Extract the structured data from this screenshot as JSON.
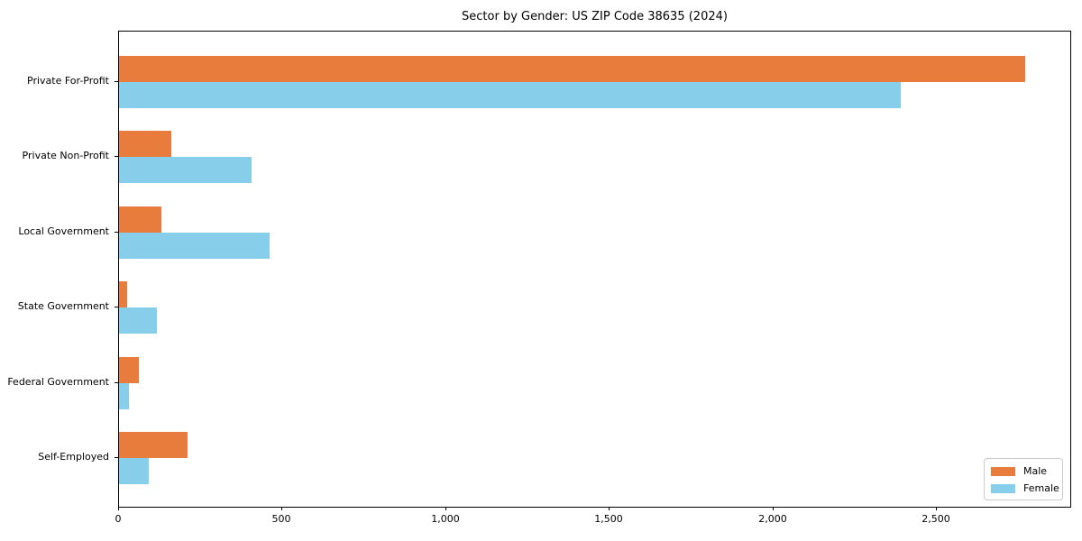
{
  "chart_data": {
    "type": "bar",
    "orientation": "horizontal",
    "title": "Sector by Gender: US ZIP Code 38635 (2024)",
    "categories": [
      "Private For-Profit",
      "Private Non-Profit",
      "Local Government",
      "State Government",
      "Federal Government",
      "Self-Employed"
    ],
    "series": [
      {
        "name": "Male",
        "color": "#e87c3c",
        "values": [
          2770,
          160,
          130,
          25,
          60,
          210
        ]
      },
      {
        "name": "Female",
        "color": "#87ceeb",
        "values": [
          2390,
          405,
          460,
          115,
          30,
          90
        ]
      }
    ],
    "xlabel": "",
    "ylabel": "",
    "xlim": [
      0,
      2910
    ],
    "xticks": [
      0,
      500,
      1000,
      1500,
      2000,
      2500
    ],
    "xtick_labels": [
      "0",
      "500",
      "1,000",
      "1,500",
      "2,000",
      "2,500"
    ],
    "grid": false,
    "background_color": "#ffffff",
    "axis_color": "#000000",
    "legend": {
      "position": "lower-right",
      "entries": [
        "Male",
        "Female"
      ]
    }
  }
}
